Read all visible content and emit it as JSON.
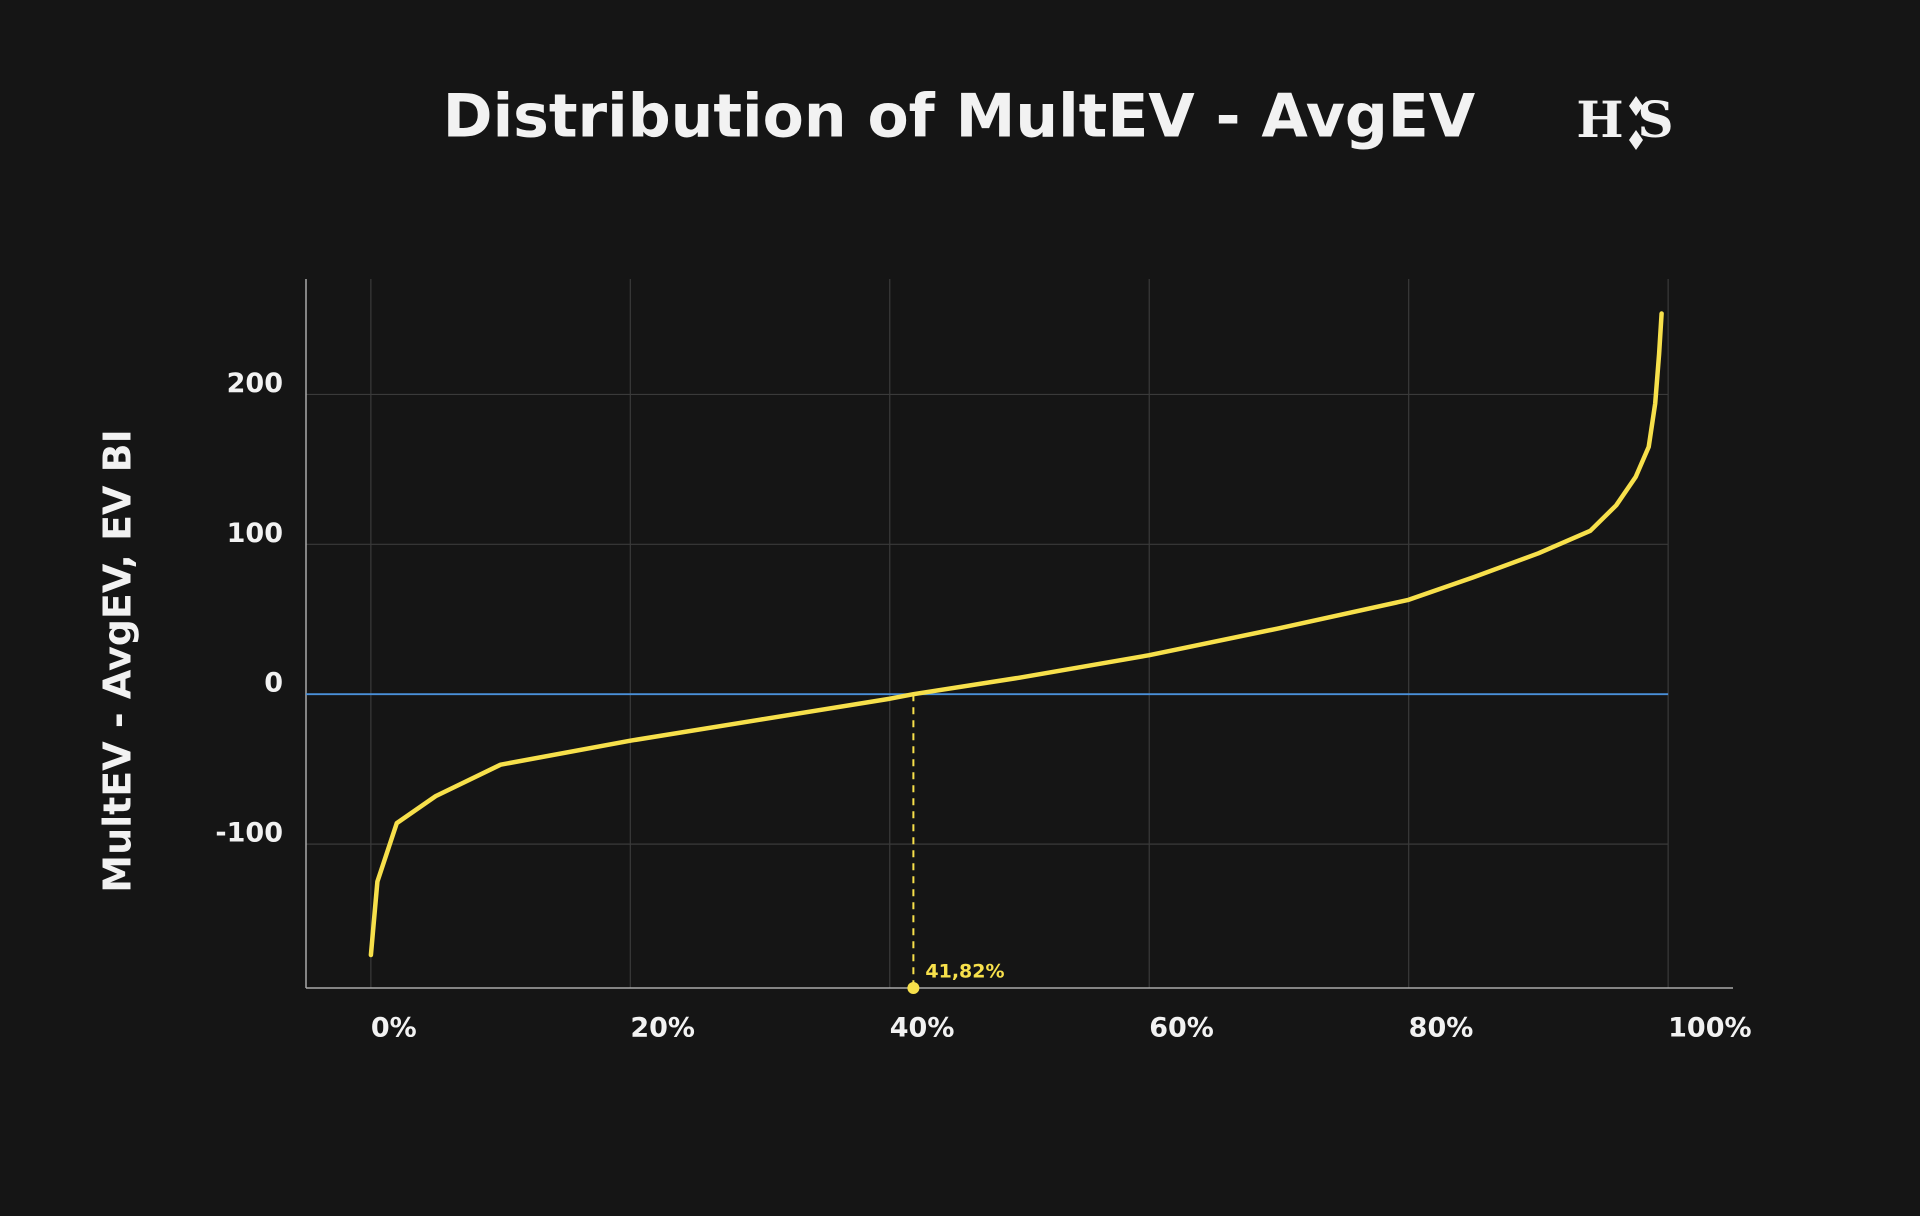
{
  "chart_data": {
    "type": "line",
    "title": "Distribution of MultEV - AvgEV",
    "logo": "HS",
    "ylabel": "MultEV - AvgEV, EV BI",
    "x": [
      0,
      0.5,
      2,
      5,
      10,
      20,
      30,
      40,
      41.82,
      50,
      60,
      70,
      80,
      85,
      90,
      94,
      96,
      97.5,
      98.5,
      99,
      99.3,
      99.5
    ],
    "values": [
      -174,
      -125,
      -86,
      -68,
      -47,
      -31,
      -17,
      -3,
      0,
      11,
      26,
      44,
      63,
      78,
      94,
      109,
      126,
      145,
      165,
      194,
      227,
      254
    ],
    "color": "#f7e04b",
    "xlim": [
      -5,
      105
    ],
    "ylim": [
      -196,
      277
    ],
    "xticks": [
      {
        "value": 0,
        "label": "0%"
      },
      {
        "value": 20,
        "label": "20%"
      },
      {
        "value": 40,
        "label": "40%"
      },
      {
        "value": 60,
        "label": "60%"
      },
      {
        "value": 80,
        "label": "80%"
      },
      {
        "value": 100,
        "label": "100%"
      }
    ],
    "yticks": [
      -100,
      0,
      100,
      200
    ],
    "grid": true,
    "reference_line": {
      "y": 0,
      "color": "#4a90d9"
    },
    "marker": {
      "x": 41.82,
      "label": "41,82%"
    }
  }
}
